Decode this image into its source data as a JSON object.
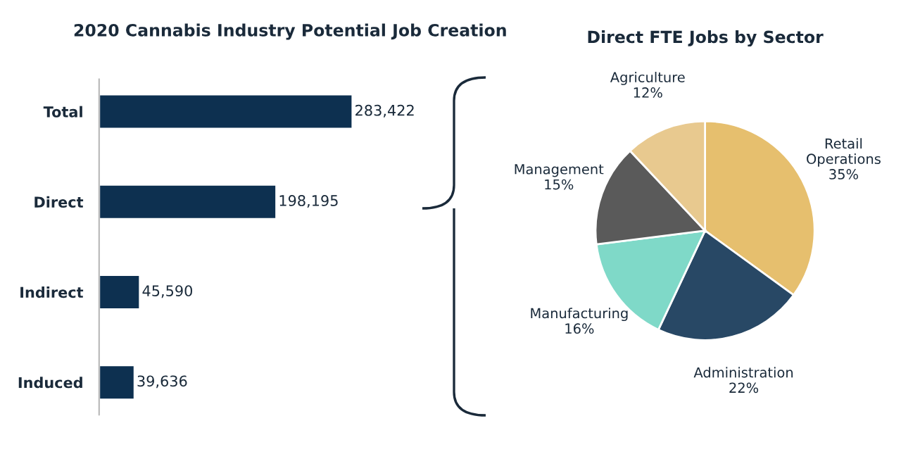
{
  "chart_data": [
    {
      "type": "bar",
      "orientation": "horizontal",
      "title": "2020 Cannabis Industry Potential Job Creation",
      "categories": [
        "Total",
        "Direct",
        "Indirect",
        "Induced"
      ],
      "values": [
        283422,
        198195,
        45590,
        39636
      ],
      "color": "#0d3050",
      "value_labels": [
        "283,422",
        "198,195",
        "45,590",
        "39,636"
      ],
      "grid": false,
      "legend": false
    },
    {
      "type": "pie",
      "title": "Direct FTE Jobs by Sector",
      "categories": [
        "Retail Operations",
        "Administration",
        "Manufacturing",
        "Management",
        "Agriculture"
      ],
      "values": [
        35,
        22,
        16,
        15,
        12
      ],
      "value_labels": [
        "35%",
        "22%",
        "16%",
        "15%",
        "12%"
      ],
      "colors": [
        "#e6bf6e",
        "#284865",
        "#7fd9c8",
        "#5a5a5a",
        "#e8c98f"
      ],
      "legend": false
    }
  ]
}
